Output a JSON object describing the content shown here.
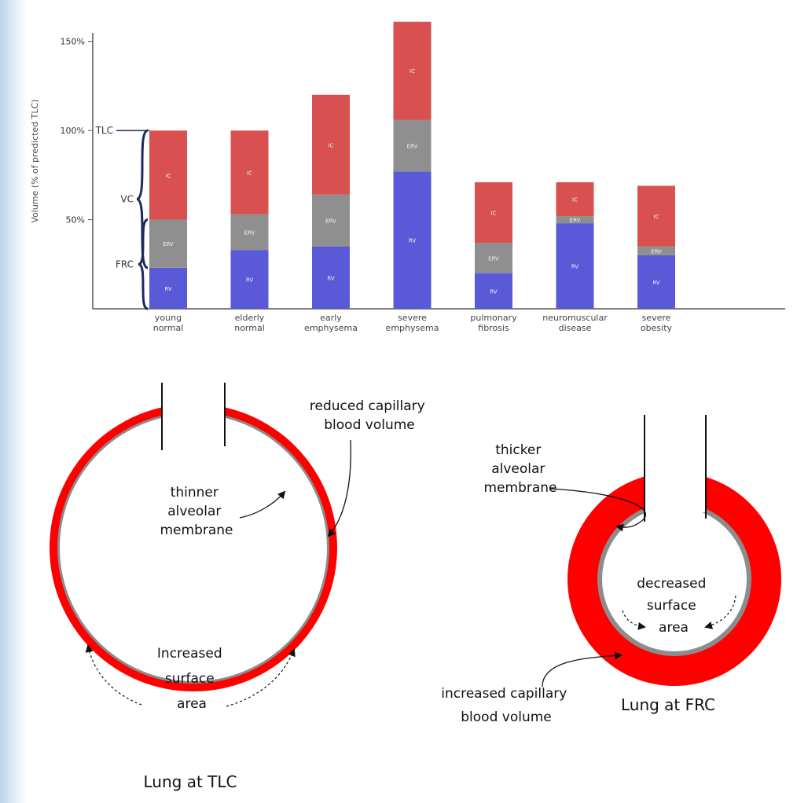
{
  "chart_data": {
    "type": "bar",
    "stacked": true,
    "title": "",
    "xlabel": "",
    "ylabel": "Volume (% of predicted TLC)",
    "ylim": [
      0,
      160
    ],
    "yticks": [
      {
        "value": 150,
        "label": "150%"
      },
      {
        "value": 100,
        "label": "100%"
      },
      {
        "value": 50,
        "label": "50%"
      }
    ],
    "grid": false,
    "categories": [
      [
        "young",
        "normal"
      ],
      [
        "elderly",
        "normal"
      ],
      [
        "early",
        "emphysema"
      ],
      [
        "severe",
        "emphysema"
      ],
      [
        "pulmonary",
        "fibrosis"
      ],
      [
        "neuromuscular",
        "disease"
      ],
      [
        "severe",
        "obesity"
      ]
    ],
    "series": [
      {
        "name": "RV",
        "label": "RV",
        "color": "#5a5ad8",
        "values": [
          23,
          33,
          35,
          77,
          20,
          48,
          30
        ]
      },
      {
        "name": "ERV",
        "label": "ERV",
        "color": "#8f8f8f",
        "values": [
          27,
          20,
          29,
          29,
          17,
          4,
          5
        ]
      },
      {
        "name": "IC",
        "label": "IC",
        "color": "#d95050",
        "values": [
          50,
          47,
          56,
          55,
          34,
          19,
          34
        ]
      }
    ],
    "annotations": [
      {
        "label": "TLC",
        "at_value": 100
      },
      {
        "label": "VC",
        "span": [
          23,
          100
        ]
      },
      {
        "label": "FRC",
        "span": [
          0,
          50
        ]
      }
    ]
  },
  "diagram": {
    "left": {
      "caption": "Lung at TLC",
      "labels": {
        "top_right": [
          "reduced capillary",
          "blood volume"
        ],
        "membrane": [
          "thinner",
          "alveolar",
          "membrane"
        ],
        "surface": [
          "Increased",
          "surface",
          "area"
        ]
      }
    },
    "right": {
      "caption": "Lung at FRC",
      "labels": {
        "membrane": [
          "thicker",
          "alveolar",
          "membrane"
        ],
        "surface": [
          "decreased",
          "surface",
          "area"
        ],
        "bottom_left": [
          "increased capillary",
          "blood volume"
        ]
      }
    },
    "colors": {
      "capillary": "#ff0000",
      "membrane": "#8c8c8c"
    }
  }
}
